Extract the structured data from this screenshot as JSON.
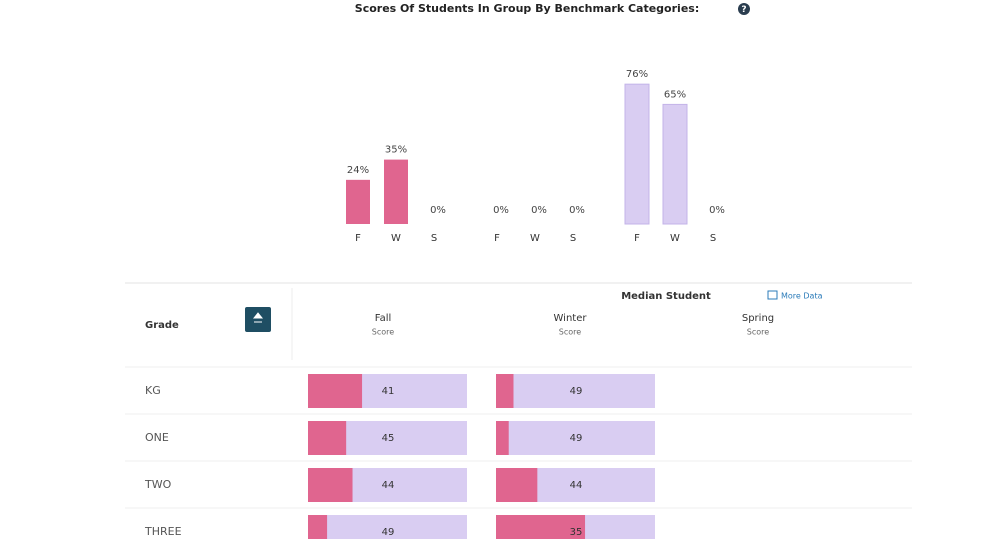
{
  "header": {
    "title": "Scores Of Students In Group By Benchmark Categories:"
  },
  "chart": {
    "ylim": [
      0,
      100
    ],
    "groups": [
      {
        "color": "#e0658f",
        "categories": [
          "F",
          "W",
          "S"
        ],
        "values": [
          24,
          35,
          0
        ],
        "value_labels": [
          "24%",
          "35%",
          "0%"
        ]
      },
      {
        "categories": [
          "F",
          "W",
          "S"
        ],
        "values": [
          0,
          0,
          0
        ],
        "value_labels": [
          "0%",
          "0%",
          "0%"
        ]
      },
      {
        "color": "#d9cdf2",
        "categories": [
          "F",
          "W",
          "S"
        ],
        "values": [
          76,
          65,
          0
        ],
        "value_labels": [
          "76%",
          "65%",
          "0%"
        ]
      }
    ]
  },
  "table": {
    "title": "Median Student",
    "link": "More Data",
    "grade_header": "Grade",
    "fill_color": "#e0658f",
    "track_color": "#d9cdf2",
    "columns": [
      {
        "name": "Fall",
        "sub": "Score"
      },
      {
        "name": "Winter",
        "sub": "Score"
      },
      {
        "name": "Spring",
        "sub": "Score"
      }
    ],
    "rows": [
      {
        "grade": "KG",
        "scores": [
          41,
          49
        ],
        "fills": [
          34,
          11
        ]
      },
      {
        "grade": "ONE",
        "scores": [
          45,
          49
        ],
        "fills": [
          24,
          8
        ]
      },
      {
        "grade": "TWO",
        "scores": [
          44,
          44
        ],
        "fills": [
          28,
          26
        ]
      },
      {
        "grade": "THREE",
        "scores": [
          49,
          35
        ],
        "fills": [
          12,
          56
        ]
      }
    ]
  }
}
